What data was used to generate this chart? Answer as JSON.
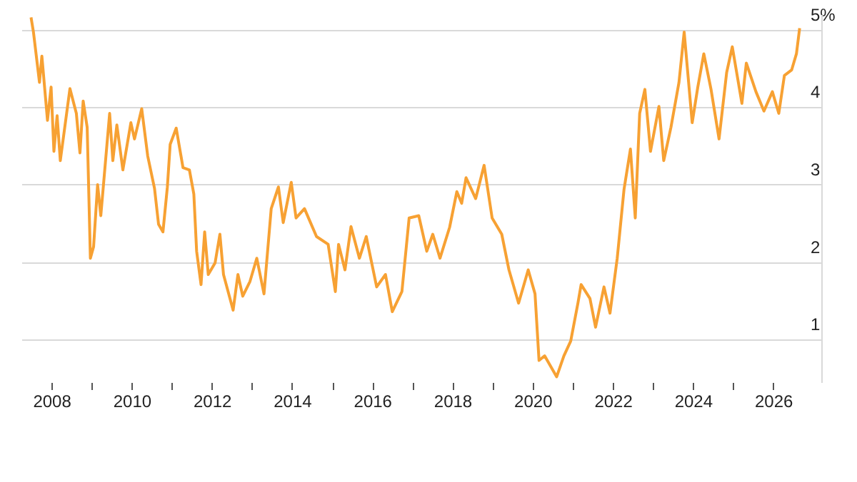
{
  "chart_data": {
    "type": "line",
    "x": [
      2007.49,
      2007.55,
      2007.7,
      2007.76,
      2007.9,
      2007.99,
      2008.06,
      2008.14,
      2008.22,
      2008.46,
      2008.62,
      2008.71,
      2008.79,
      2008.89,
      2008.97,
      2009.05,
      2009.15,
      2009.23,
      2009.45,
      2009.53,
      2009.63,
      2009.78,
      2009.98,
      2010.07,
      2010.25,
      2010.4,
      2010.57,
      2010.67,
      2010.78,
      2010.89,
      2010.96,
      2011.11,
      2011.28,
      2011.44,
      2011.55,
      2011.62,
      2011.73,
      2011.82,
      2011.91,
      2012.08,
      2012.2,
      2012.29,
      2012.53,
      2012.65,
      2012.77,
      2012.95,
      2013.12,
      2013.3,
      2013.48,
      2013.66,
      2013.78,
      2013.98,
      2014.1,
      2014.31,
      2014.61,
      2014.9,
      2015.08,
      2015.16,
      2015.32,
      2015.47,
      2015.68,
      2015.85,
      2016.11,
      2016.33,
      2016.5,
      2016.74,
      2016.92,
      2017.16,
      2017.36,
      2017.51,
      2017.69,
      2017.93,
      2018.11,
      2018.23,
      2018.34,
      2018.58,
      2018.79,
      2018.99,
      2019.23,
      2019.41,
      2019.65,
      2019.89,
      2020.06,
      2020.16,
      2020.3,
      2020.6,
      2020.78,
      2020.95,
      2021.13,
      2021.21,
      2021.43,
      2021.57,
      2021.78,
      2021.93,
      2022.11,
      2022.28,
      2022.44,
      2022.56,
      2022.67,
      2022.8,
      2022.94,
      2023.15,
      2023.27,
      2023.45,
      2023.65,
      2023.78,
      2023.98,
      2024.12,
      2024.27,
      2024.45,
      2024.65,
      2024.84,
      2024.98,
      2025.22,
      2025.33,
      2025.57,
      2025.77,
      2025.98,
      2026.14,
      2026.28,
      2026.46,
      2026.58,
      2026.66
    ],
    "series": [
      {
        "color": "#f7a133",
        "values": [
          5.16,
          4.97,
          4.32,
          4.66,
          3.83,
          4.26,
          3.43,
          3.89,
          3.31,
          4.24,
          3.92,
          3.41,
          4.08,
          3.74,
          2.05,
          2.2,
          3.0,
          2.6,
          3.92,
          3.31,
          3.77,
          3.19,
          3.8,
          3.59,
          3.98,
          3.37,
          2.95,
          2.49,
          2.39,
          2.97,
          3.52,
          3.73,
          3.22,
          3.19,
          2.88,
          2.14,
          1.71,
          2.39,
          1.84,
          1.99,
          2.36,
          1.84,
          1.38,
          1.84,
          1.56,
          1.75,
          2.05,
          1.59,
          2.69,
          2.97,
          2.51,
          3.03,
          2.57,
          2.69,
          2.33,
          2.23,
          1.62,
          2.23,
          1.9,
          2.46,
          2.05,
          2.33,
          1.68,
          1.84,
          1.36,
          1.62,
          2.57,
          2.6,
          2.14,
          2.36,
          2.05,
          2.45,
          2.91,
          2.76,
          3.09,
          2.82,
          3.25,
          2.57,
          2.36,
          1.9,
          1.47,
          1.9,
          1.59,
          0.73,
          0.79,
          0.52,
          0.79,
          0.98,
          1.47,
          1.71,
          1.53,
          1.16,
          1.68,
          1.34,
          2.05,
          2.94,
          3.46,
          2.57,
          3.92,
          4.23,
          3.43,
          4.01,
          3.31,
          3.74,
          4.32,
          4.97,
          3.8,
          4.26,
          4.69,
          4.23,
          3.59,
          4.45,
          4.78,
          4.05,
          4.57,
          4.2,
          3.95,
          4.2,
          3.92,
          4.41,
          4.48,
          4.69,
          5.02
        ]
      }
    ],
    "xlim": [
      2007.25,
      2027.2
    ],
    "xticks": [
      2008,
      {
        "value": 2009,
        "label": null
      },
      2010,
      {
        "value": 2011,
        "label": null
      },
      2012,
      {
        "value": 2013,
        "label": null
      },
      2014,
      {
        "value": 2015,
        "label": null
      },
      2016,
      {
        "value": 2017,
        "label": null
      },
      2018,
      {
        "value": 2019,
        "label": null
      },
      2020,
      {
        "value": 2021,
        "label": null
      },
      2022,
      {
        "value": 2023,
        "label": null
      },
      2024,
      {
        "value": 2025,
        "label": null
      },
      2026
    ],
    "ylim": [
      0.45,
      5.2
    ],
    "yticks": [
      1,
      2,
      3,
      4,
      {
        "value": 5,
        "label": "5%"
      }
    ],
    "grid": "y",
    "line_style": "solid"
  }
}
